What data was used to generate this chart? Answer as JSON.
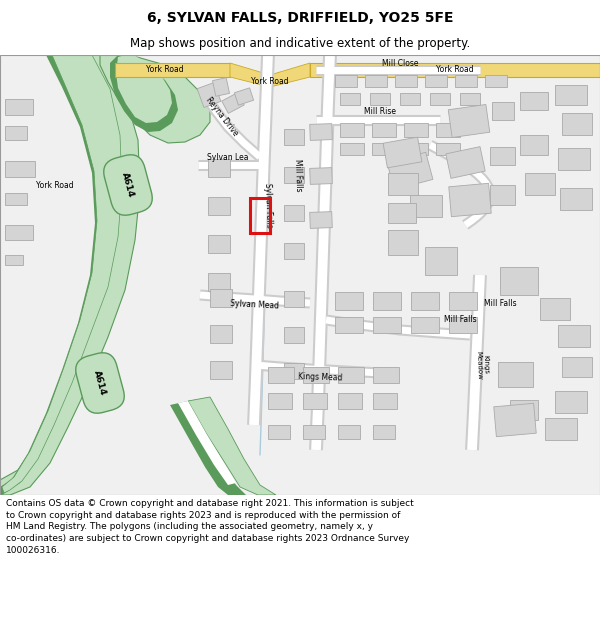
{
  "title": "6, SYLVAN FALLS, DRIFFIELD, YO25 5FE",
  "subtitle": "Map shows position and indicative extent of the property.",
  "footer": "Contains OS data © Crown copyright and database right 2021. This information is subject\nto Crown copyright and database rights 2023 and is reproduced with the permission of\nHM Land Registry. The polygons (including the associated geometry, namely x, y\nco-ordinates) are subject to Crown copyright and database rights 2023 Ordnance Survey\n100026316.",
  "bg_color": "#ffffff",
  "map_bg": "#f0f0f0",
  "road_dark_green": "#5a9a5a",
  "road_light_green": "#c0e0c0",
  "road_yellow_fill": "#f0d878",
  "road_yellow_edge": "#c8aa28",
  "road_white": "#ffffff",
  "road_grey": "#cccccc",
  "building_fill": "#d4d4d4",
  "building_edge": "#aaaaaa",
  "highlight_red": "#dd1111",
  "light_blue": "#aaccdd",
  "title_fontsize": 10,
  "subtitle_fontsize": 8.5,
  "footer_fontsize": 6.5
}
